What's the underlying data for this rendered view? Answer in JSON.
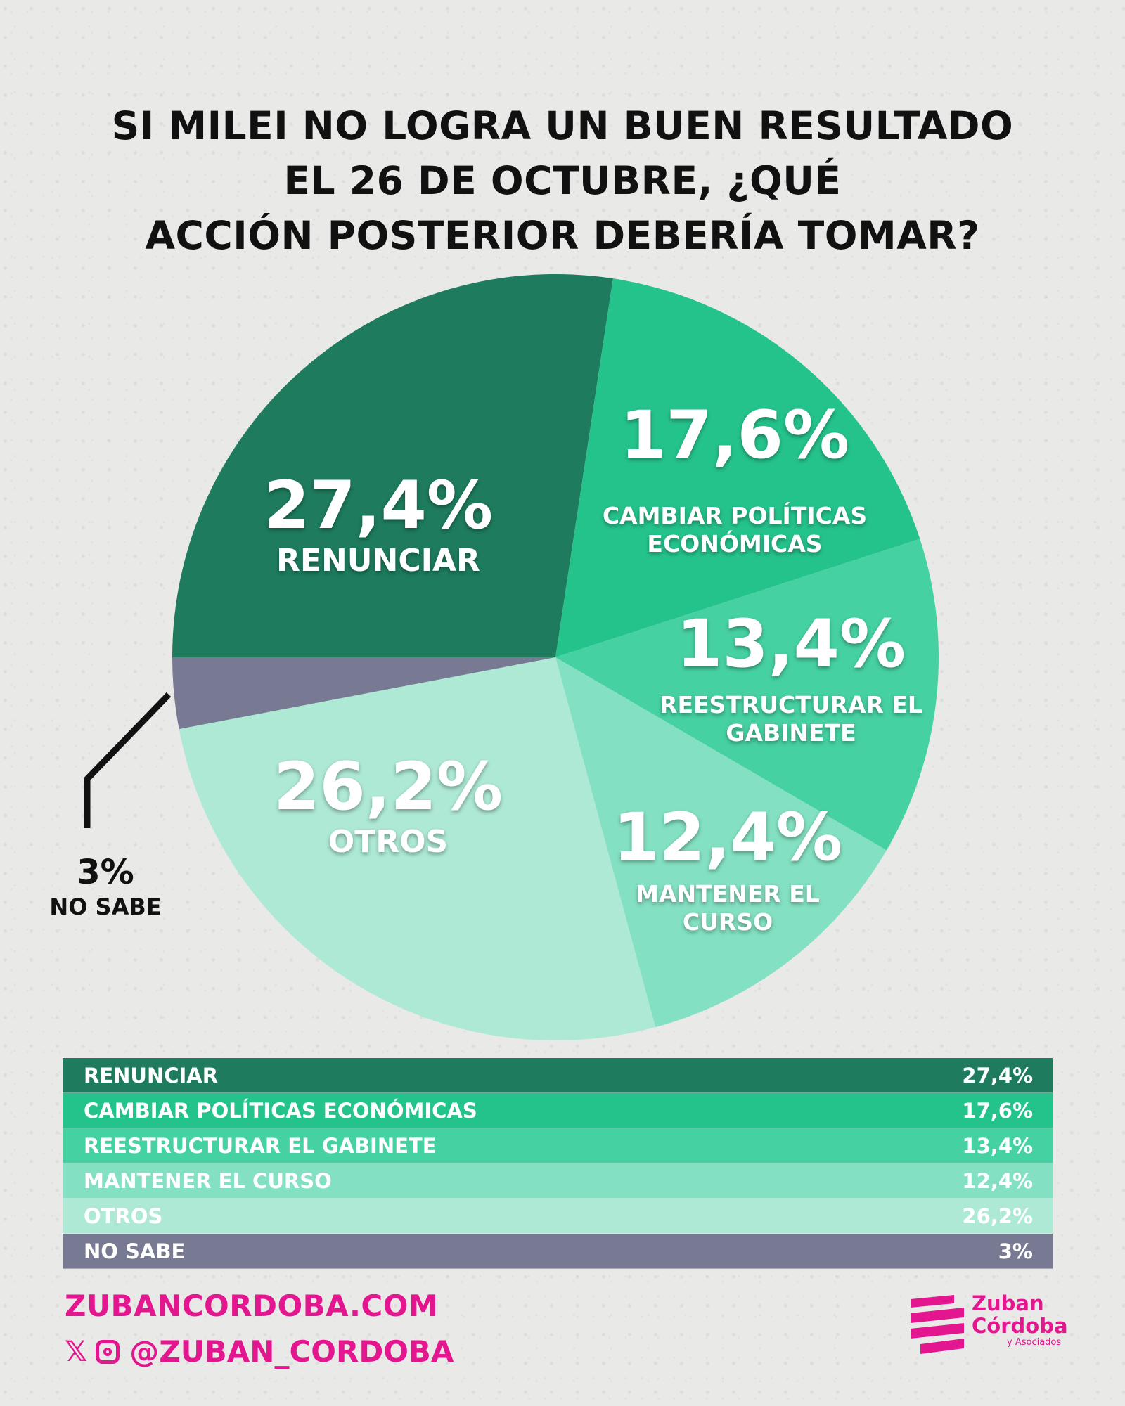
{
  "title_lines": [
    "SI MILEI NO LOGRA UN BUEN RESULTADO",
    "EL 26 DE OCTUBRE, ¿QUÉ",
    "ACCIÓN POSTERIOR DEBERÍA TOMAR?"
  ],
  "chart_data": {
    "type": "pie",
    "title": "SI MILEI NO LOGRA UN BUEN RESULTADO EL 26 DE OCTUBRE, ¿QUÉ ACCIÓN POSTERIOR DEBERÍA TOMAR?",
    "start": "left",
    "direction": "clockwise",
    "slices": [
      {
        "label": "RENUNCIAR",
        "value": 27.4,
        "display": "27,4%",
        "color": "#1e7b5e"
      },
      {
        "label": "CAMBIAR POLÍTICAS ECONÓMICAS",
        "value": 17.6,
        "display": "17,6%",
        "color": "#25c38c"
      },
      {
        "label": "REESTRUCTURAR EL GABINETE",
        "value": 13.4,
        "display": "13,4%",
        "color": "#46d1a3"
      },
      {
        "label": "MANTENER EL CURSO",
        "value": 12.4,
        "display": "12,4%",
        "color": "#84e0c2"
      },
      {
        "label": "OTROS",
        "value": 26.2,
        "display": "26,2%",
        "color": "#aee9d6"
      },
      {
        "label": "NO SABE",
        "value": 3,
        "display": "3%",
        "color": "#777a92"
      }
    ]
  },
  "pie_labels": {
    "renunciar": {
      "pct": "27,4%",
      "lines": [
        "RENUNCIAR"
      ]
    },
    "cambiar": {
      "pct": "17,6%",
      "lines": [
        "CAMBIAR POLÍTICAS",
        "ECONÓMICAS"
      ]
    },
    "reestructurar": {
      "pct": "13,4%",
      "lines": [
        "REESTRUCTURAR EL",
        "GABINETE"
      ]
    },
    "mantener": {
      "pct": "12,4%",
      "lines": [
        "MANTENER EL",
        "CURSO"
      ]
    },
    "otros": {
      "pct": "26,2%",
      "lines": [
        "OTROS"
      ]
    },
    "nosabe": {
      "pct": "3%",
      "lines": [
        "NO SABE"
      ]
    }
  },
  "table": [
    {
      "label": "RENUNCIAR",
      "value": "27,4%",
      "color": "#1e7b5e"
    },
    {
      "label": "CAMBIAR POLÍTICAS ECONÓMICAS",
      "value": "17,6%",
      "color": "#25c38c"
    },
    {
      "label": "REESTRUCTURAR EL GABINETE",
      "value": "13,4%",
      "color": "#46d1a3"
    },
    {
      "label": "MANTENER EL CURSO",
      "value": "12,4%",
      "color": "#84e0c2"
    },
    {
      "label": "OTROS",
      "value": "26,2%",
      "color": "#aee9d6"
    },
    {
      "label": "NO SABE",
      "value": "3%",
      "color": "#777a92"
    }
  ],
  "footer": {
    "website": "ZUBANCORDOBA.COM",
    "handle": "@ZUBAN_CORDOBA",
    "social_icons": [
      "x-icon",
      "instagram-icon"
    ],
    "brand_color": "#e3158f",
    "logo": {
      "line1": "Zuban",
      "line2": "Córdoba",
      "line3": "y Asociados"
    }
  }
}
